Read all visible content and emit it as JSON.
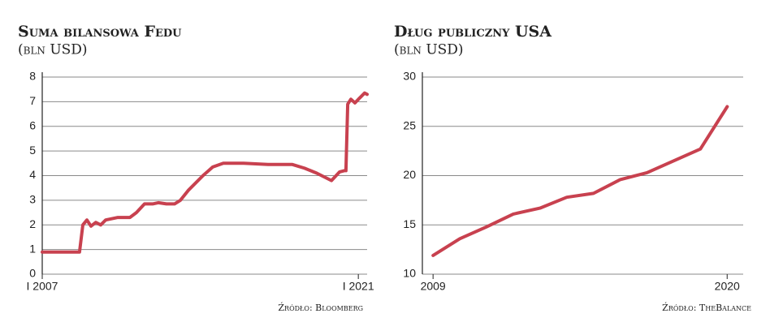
{
  "chart_data": [
    {
      "type": "line",
      "title": "Suma bilansowa Fedu",
      "subtitle": "(bln USD)",
      "source": "Źródło: Bloomberg",
      "x": [
        2007.0,
        2008.65,
        2008.8,
        2008.98,
        2009.16,
        2009.37,
        2009.59,
        2009.81,
        2010.35,
        2010.88,
        2011.17,
        2011.53,
        2011.89,
        2012.14,
        2012.5,
        2012.86,
        2013.12,
        2013.47,
        2014.12,
        2014.55,
        2015.02,
        2015.92,
        2017.0,
        2018.08,
        2018.62,
        2019.16,
        2019.81,
        2020.17,
        2020.38,
        2020.45,
        2020.53,
        2020.67,
        2020.85,
        2021.06,
        2021.28,
        2021.39
      ],
      "series": [
        {
          "color": "#c8414f",
          "values": [
            0.9,
            0.9,
            2.0,
            2.2,
            1.95,
            2.1,
            2.0,
            2.2,
            2.3,
            2.3,
            2.5,
            2.85,
            2.85,
            2.9,
            2.85,
            2.85,
            3.0,
            3.4,
            4.0,
            4.35,
            4.5,
            4.5,
            4.45,
            4.45,
            4.3,
            4.1,
            3.8,
            4.15,
            4.2,
            4.2,
            6.9,
            7.1,
            6.95,
            7.15,
            7.35,
            7.3
          ]
        }
      ],
      "xlim": [
        2007.0,
        2021.39
      ],
      "xticks": [
        {
          "value": 2007,
          "label": "I 2007"
        },
        {
          "value": 2021,
          "label": "I 2021"
        }
      ],
      "ylim": [
        0,
        8
      ],
      "yticks": [
        0,
        1,
        2,
        3,
        4,
        5,
        6,
        7,
        8
      ],
      "grid": true
    },
    {
      "type": "line",
      "title": "Dług publiczny USA",
      "subtitle": "(bln USD)",
      "source": "Źródło: TheBalance",
      "x": [
        2009,
        2010,
        2011,
        2012,
        2013,
        2014,
        2015,
        2016,
        2017,
        2018,
        2019,
        2020
      ],
      "series": [
        {
          "color": "#c8414f",
          "values": [
            11.9,
            13.6,
            14.8,
            16.1,
            16.7,
            17.8,
            18.2,
            19.6,
            20.3,
            21.5,
            22.7,
            27.0
          ]
        }
      ],
      "xlim": [
        2008.6,
        2020.6
      ],
      "xticks": [
        2009,
        2020
      ],
      "ylim": [
        10,
        30
      ],
      "yticks": [
        10,
        15,
        20,
        25,
        30
      ],
      "grid": true
    }
  ]
}
